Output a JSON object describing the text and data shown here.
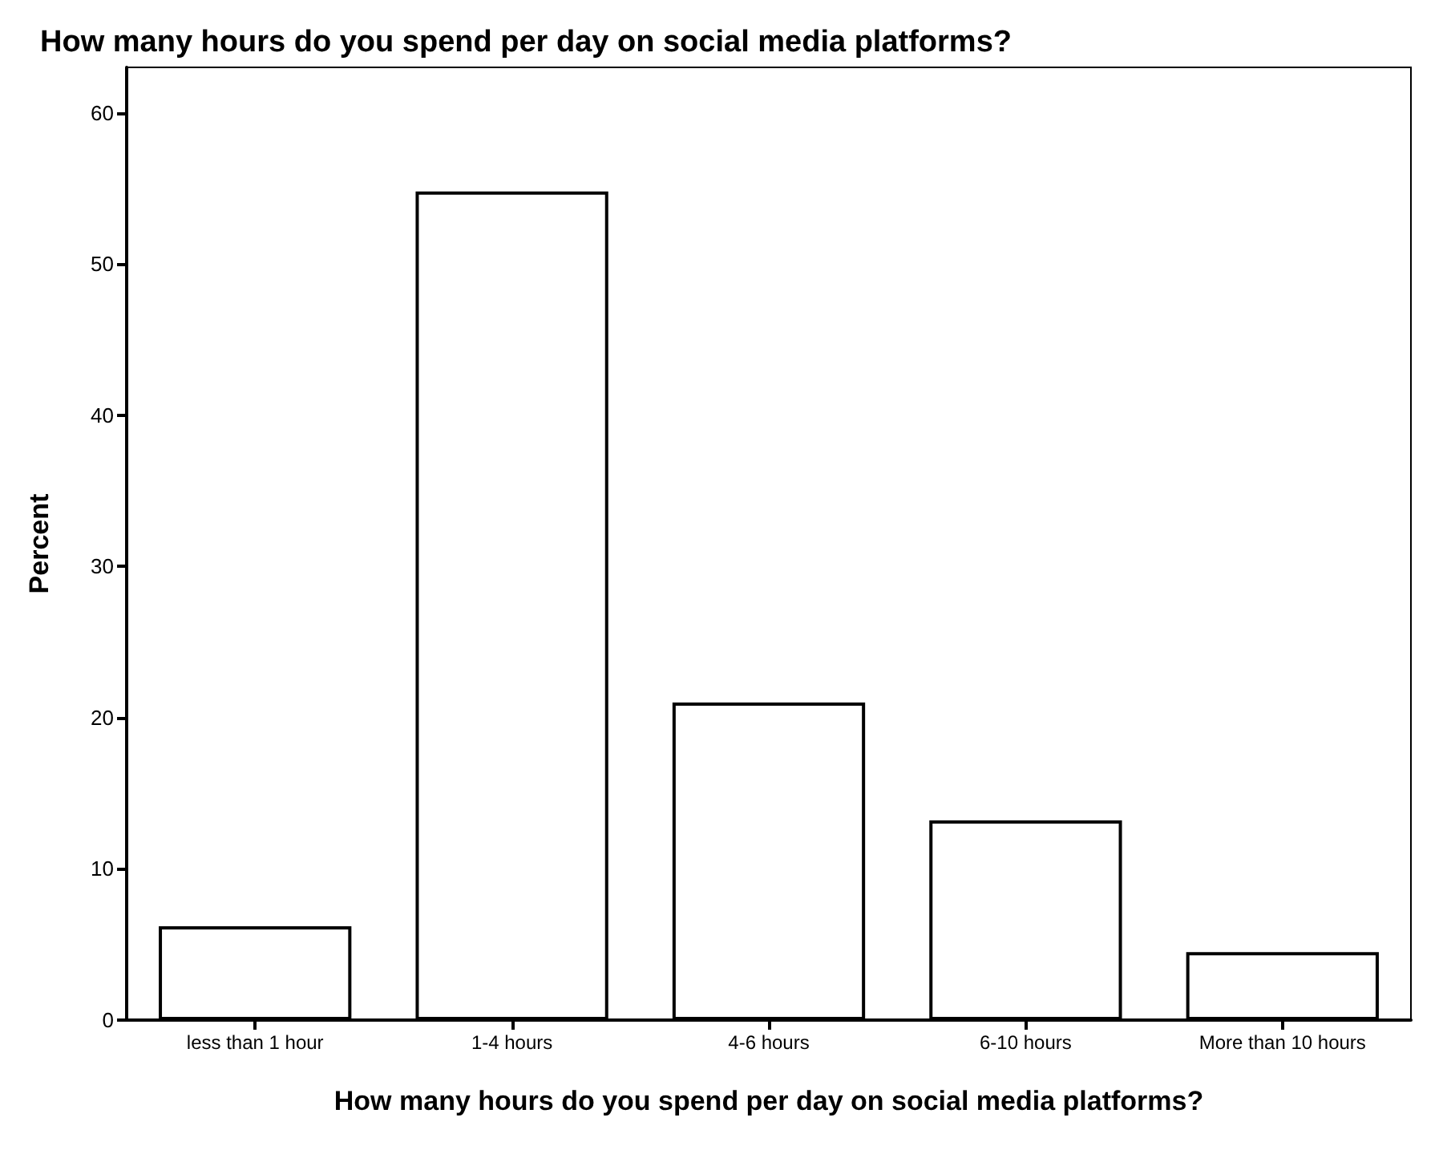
{
  "chart_data": {
    "type": "bar",
    "title": "How many hours do you spend per day on social media platforms?",
    "xlabel": "How many hours do you spend per day on social media platforms?",
    "ylabel": "Percent",
    "categories": [
      "less than 1 hour",
      "1-4 hours",
      "4-6 hours",
      "6-10 hours",
      "More than 10 hours"
    ],
    "values": [
      6.2,
      54.8,
      21,
      13.2,
      4.5
    ],
    "color": "#ffffff",
    "ylim": [
      0,
      63
    ],
    "yticks": [
      0,
      10,
      20,
      30,
      40,
      50,
      60
    ],
    "grid": false
  }
}
